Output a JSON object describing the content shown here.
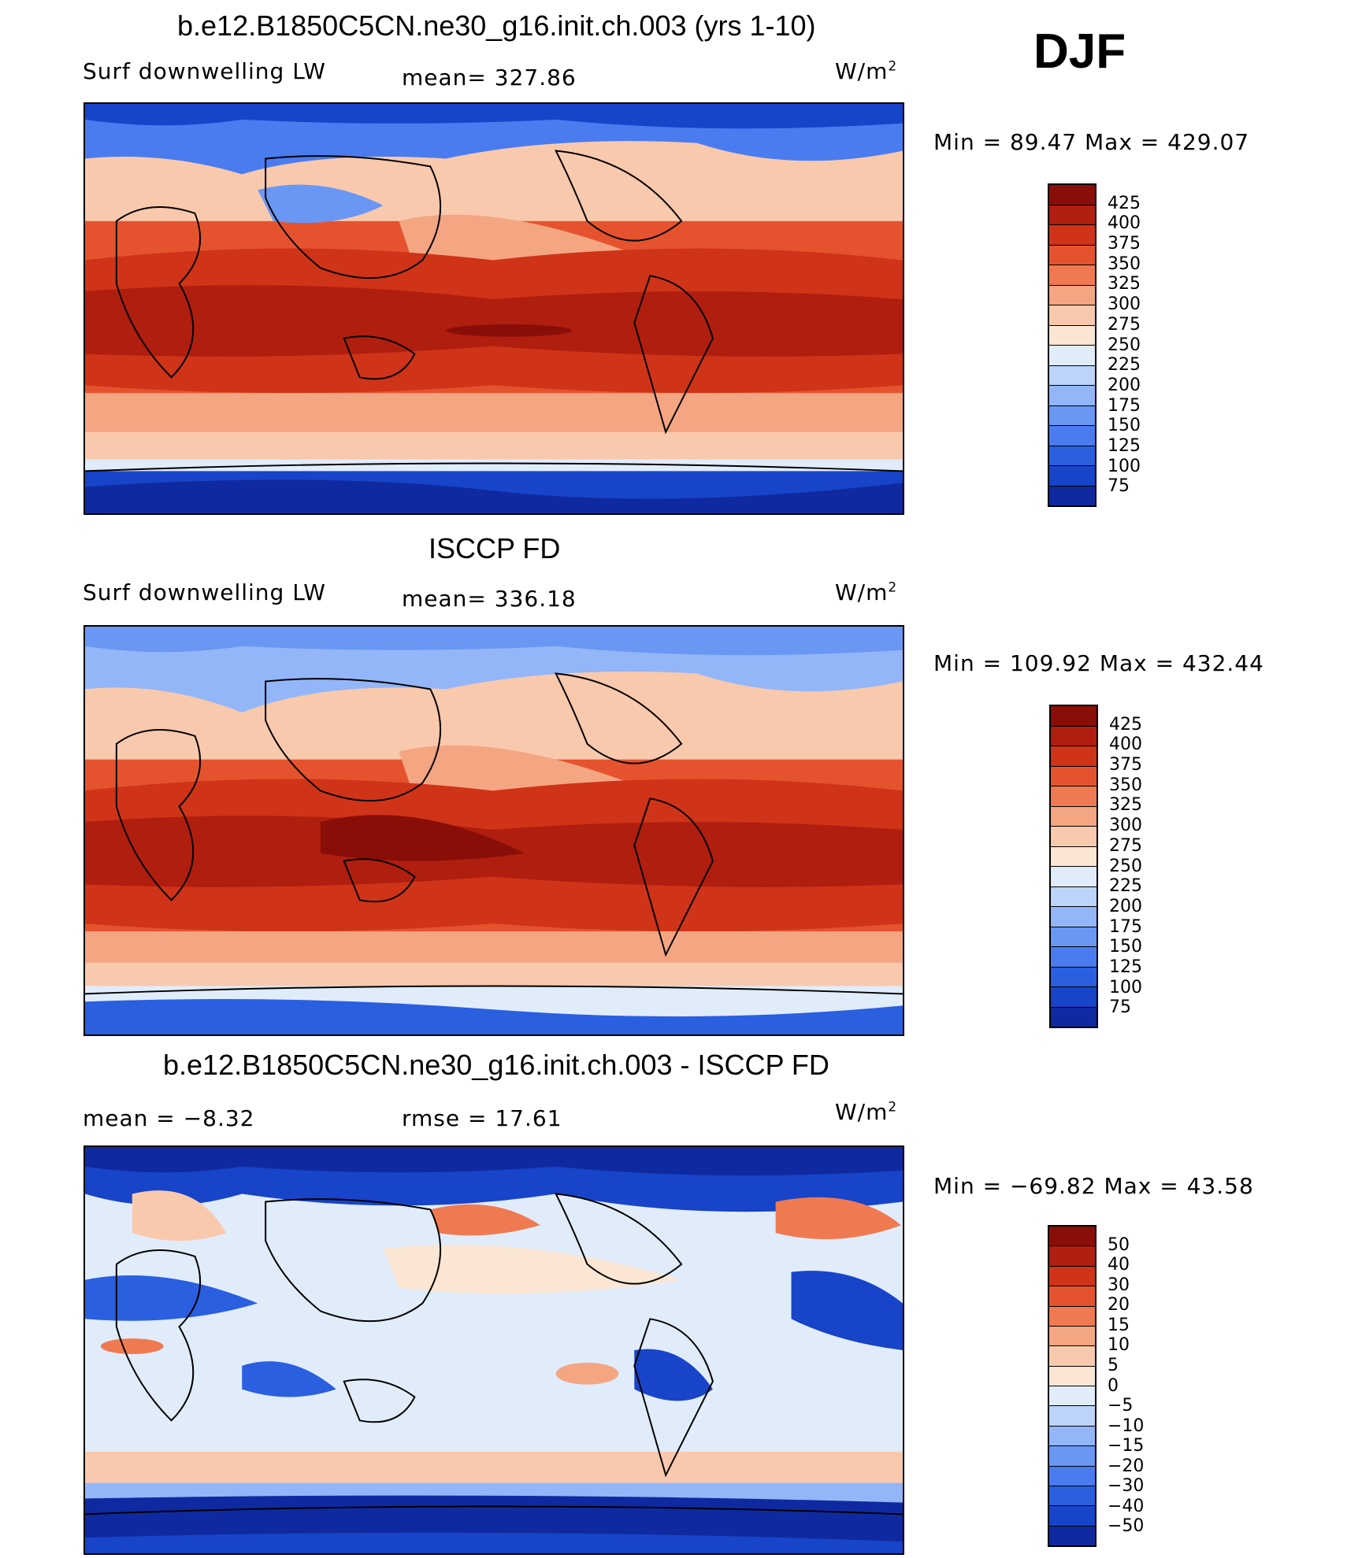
{
  "season": "DJF",
  "palette": {
    "seq": [
      "#0b0d72",
      "#0f2aa0",
      "#1744c8",
      "#2a5fe0",
      "#4a7cf0",
      "#6a97f4",
      "#93b6f8",
      "#bcd4fa",
      "#e1ecfb",
      "#fbe6d4",
      "#f9c9ad",
      "#f4a582",
      "#ef7a52",
      "#e5532e",
      "#cf3318",
      "#b01e0f",
      "#8a0e08"
    ],
    "land_line": "#000000"
  },
  "panels": [
    {
      "id": "model",
      "title": "b.e12.B1850C5CN.ne30_g16.init.ch.003 (yrs 1-10)",
      "left_label": "Surf downwelling LW",
      "center_label": "mean= 327.86",
      "units": "W/m",
      "units_sup": "2",
      "minmax": "Min =   89.47 Max = 429.07",
      "colorbar_labels": [
        "425",
        "400",
        "375",
        "350",
        "325",
        "300",
        "275",
        "250",
        "225",
        "200",
        "175",
        "150",
        "125",
        "100",
        "75"
      ]
    },
    {
      "id": "obs",
      "title": "ISCCP FD",
      "left_label": "Surf downwelling LW",
      "center_label": "mean= 336.18",
      "units": "W/m",
      "units_sup": "2",
      "minmax": "Min = 109.92 Max = 432.44",
      "colorbar_labels": [
        "425",
        "400",
        "375",
        "350",
        "325",
        "300",
        "275",
        "250",
        "225",
        "200",
        "175",
        "150",
        "125",
        "100",
        "75"
      ]
    },
    {
      "id": "diff",
      "title": "b.e12.B1850C5CN.ne30_g16.init.ch.003 - ISCCP FD",
      "left_label": "mean =   −8.32",
      "center_label": "rmse =   17.61",
      "units": "W/m",
      "units_sup": "2",
      "minmax": "Min = −69.82 Max =   43.58",
      "colorbar_labels": [
        "50",
        "40",
        "30",
        "20",
        "15",
        "10",
        "5",
        "0",
        "−5",
        "−10",
        "−15",
        "−20",
        "−30",
        "−40",
        "−50"
      ]
    }
  ]
}
